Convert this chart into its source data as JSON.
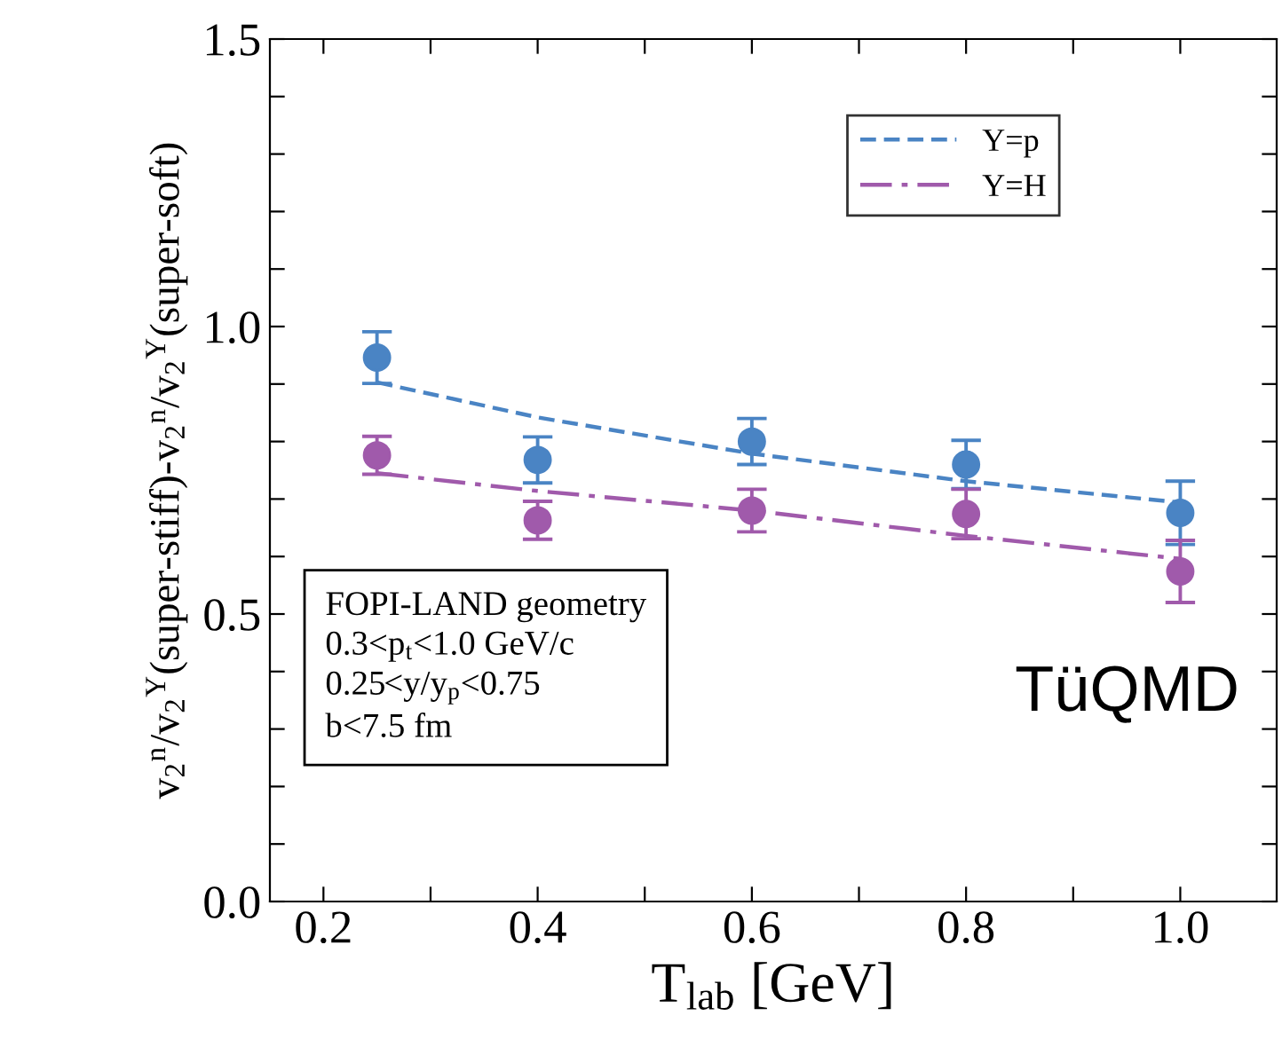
{
  "chart_data": {
    "type": "scatter",
    "xlabel": "T$_{lab}$ [GeV]",
    "ylabel": "v$_{2}$$^{n}$/v$_{2}$$^{Y}$(super-stiff)-v$_{2}$$^{n}$/v$_{2}$$^{Y}$(super-soft)",
    "x": [
      0.25,
      0.4,
      0.6,
      0.8,
      1.0
    ],
    "series": [
      {
        "type": "line",
        "name": "Y=p",
        "color": "#4a84c4",
        "line_style": "dashed",
        "marker": "none",
        "values": [
          0.903,
          0.842,
          0.779,
          0.731,
          0.694
        ]
      },
      {
        "type": "line",
        "name": "Y=H",
        "color": "#a05aab",
        "line_style": "dashdot",
        "marker": "none",
        "values": [
          0.745,
          0.714,
          0.68,
          0.636,
          0.596
        ]
      },
      {
        "color": "#4a84c4",
        "marker": "circle",
        "values": [
          0.946,
          0.768,
          0.8,
          0.76,
          0.676
        ],
        "errors": [
          0.045,
          0.04,
          0.04,
          0.042,
          0.055
        ]
      },
      {
        "color": "#a05aab",
        "marker": "circle",
        "values": [
          0.776,
          0.663,
          0.68,
          0.674,
          0.574
        ],
        "errors": [
          0.033,
          0.033,
          0.037,
          0.043,
          0.054
        ]
      }
    ],
    "xlim": [
      0.15,
      1.09
    ],
    "ylim": [
      0.0,
      1.5
    ],
    "xticks": [
      {
        "value": 0.2,
        "label": "0.2"
      },
      {
        "value": 0.3,
        "label": null
      },
      {
        "value": 0.4,
        "label": "0.4"
      },
      {
        "value": 0.5,
        "label": null
      },
      {
        "value": 0.6,
        "label": "0.6"
      },
      {
        "value": 0.7,
        "label": null
      },
      {
        "value": 0.8,
        "label": "0.8"
      },
      {
        "value": 0.9,
        "label": null
      },
      {
        "value": 1.0,
        "label": "1.0"
      }
    ],
    "yticks": [
      {
        "value": 0.0,
        "label": "0.0"
      },
      {
        "value": 0.1,
        "label": null
      },
      {
        "value": 0.2,
        "label": null
      },
      {
        "value": 0.3,
        "label": null
      },
      {
        "value": 0.4,
        "label": null
      },
      {
        "value": 0.5,
        "label": "0.5"
      },
      {
        "value": 0.6,
        "label": null
      },
      {
        "value": 0.7,
        "label": null
      },
      {
        "value": 0.8,
        "label": null
      },
      {
        "value": 0.9,
        "label": null
      },
      {
        "value": 1.0,
        "label": "1.0"
      },
      {
        "value": 1.1,
        "label": null
      },
      {
        "value": 1.2,
        "label": null
      },
      {
        "value": 1.3,
        "label": null
      },
      {
        "value": 1.4,
        "label": null
      },
      {
        "value": 1.5,
        "label": "1.5"
      }
    ],
    "grid": false,
    "legend": "top right",
    "annotations": [
      "FOPI-LAND geometry\n0.3<p$_{t}$<1.0 GeV/c\n0.25<y/y$_{p}$<0.75\nb<7.5 fm",
      "TüQMD"
    ]
  }
}
